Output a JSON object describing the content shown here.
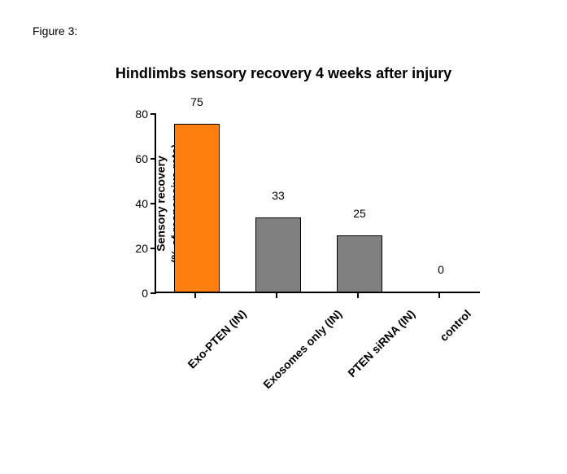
{
  "figure_label": "Figure 3:",
  "chart": {
    "type": "bar",
    "title": "Hindlimbs sensory recovery 4 weeks after injury",
    "title_fontsize": 18,
    "y_axis": {
      "label_line1": "Sensory recovery",
      "label_line2": "(% of responsive rats)",
      "min": 0,
      "max": 80,
      "ticks": [
        0,
        20,
        40,
        60,
        80
      ],
      "fontsize": 14
    },
    "bars": [
      {
        "category": "Exo-PTEN (IN)",
        "value": 75,
        "color": "#ff7f0e"
      },
      {
        "category": "Exosomes only (IN)",
        "value": 33,
        "color": "#808080"
      },
      {
        "category": "PTEN siRNA (IN)",
        "value": 25,
        "color": "#808080"
      },
      {
        "category": "control",
        "value": 0,
        "color": "#808080"
      }
    ],
    "bar_border_color": "#000000",
    "background_color": "#ffffff",
    "axis_color": "#000000",
    "label_fontsize": 14
  }
}
